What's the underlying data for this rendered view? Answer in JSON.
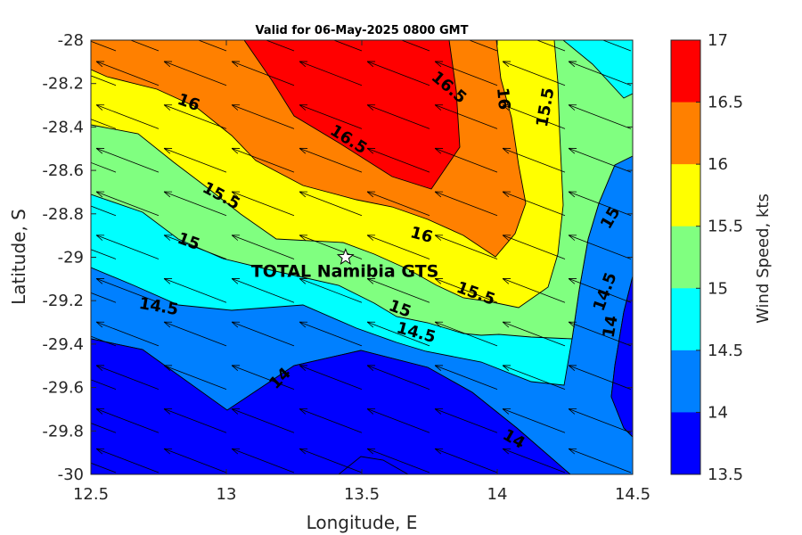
{
  "chart_data": {
    "type": "contour",
    "title": "Valid for 06-May-2025 0800 GMT",
    "xlabel": "Longitude, E",
    "ylabel": "Latitude, S",
    "xlim": [
      12.5,
      14.5
    ],
    "ylim": [
      -30,
      -28
    ],
    "xticks": [
      12.5,
      13,
      13.5,
      14,
      14.5
    ],
    "xtick_labels": [
      "12.5",
      "13",
      "13.5",
      "14",
      "14.5"
    ],
    "yticks": [
      -28,
      -28.2,
      -28.4,
      -28.6,
      -28.8,
      -29,
      -29.2,
      -29.4,
      -29.6,
      -29.8,
      -30
    ],
    "ytick_labels": [
      "-28",
      "-28.2",
      "-28.4",
      "-28.6",
      "-28.8",
      "-29",
      "-29.2",
      "-29.4",
      "-29.6",
      "-29.8",
      "-30"
    ],
    "colorbar": {
      "label": "Wind Speed, kts",
      "ticks": [
        "17",
        "16.5",
        "16",
        "15.5",
        "15",
        "14.5",
        "14",
        "13.5"
      ],
      "levels": [
        {
          "range": [
            16.5,
            17
          ],
          "color": "#ff0000"
        },
        {
          "range": [
            16,
            16.5
          ],
          "color": "#ff8000"
        },
        {
          "range": [
            15.5,
            16
          ],
          "color": "#ffff00"
        },
        {
          "range": [
            15,
            15.5
          ],
          "color": "#80ff80"
        },
        {
          "range": [
            14.5,
            15
          ],
          "color": "#00ffff"
        },
        {
          "range": [
            14,
            14.5
          ],
          "color": "#0080ff"
        },
        {
          "range": [
            13.5,
            14
          ],
          "color": "#0000ff"
        }
      ]
    },
    "contour_labels": [
      {
        "text": "16",
        "lon": 12.86,
        "lat": -28.29,
        "angle": 20
      },
      {
        "text": "16.5",
        "lon": 13.82,
        "lat": -28.22,
        "angle": 40
      },
      {
        "text": "16.5",
        "lon": 13.45,
        "lat": -28.46,
        "angle": 32
      },
      {
        "text": "16",
        "lon": 14.02,
        "lat": -28.27,
        "angle": 85
      },
      {
        "text": "15.5",
        "lon": 14.18,
        "lat": -28.31,
        "angle": -80
      },
      {
        "text": "15.5",
        "lon": 12.98,
        "lat": -28.72,
        "angle": 28
      },
      {
        "text": "15",
        "lon": 14.42,
        "lat": -28.82,
        "angle": -60
      },
      {
        "text": "15",
        "lon": 12.86,
        "lat": -28.93,
        "angle": 20
      },
      {
        "text": "16",
        "lon": 13.72,
        "lat": -28.9,
        "angle": 15
      },
      {
        "text": "15.5",
        "lon": 13.92,
        "lat": -29.17,
        "angle": 20
      },
      {
        "text": "15",
        "lon": 13.64,
        "lat": -29.24,
        "angle": 20
      },
      {
        "text": "14.5",
        "lon": 14.4,
        "lat": -29.16,
        "angle": -70
      },
      {
        "text": "14.5",
        "lon": 12.75,
        "lat": -29.23,
        "angle": 10
      },
      {
        "text": "14.5",
        "lon": 13.7,
        "lat": -29.35,
        "angle": 15
      },
      {
        "text": "14",
        "lon": 14.42,
        "lat": -29.32,
        "angle": -80
      },
      {
        "text": "14",
        "lon": 13.2,
        "lat": -29.56,
        "angle": -45
      },
      {
        "text": "14",
        "lon": 14.06,
        "lat": -29.84,
        "angle": 30
      }
    ],
    "wind_vectors": {
      "direction": "pointing toward west-northwest",
      "grid_lon": [
        12.5,
        12.75,
        13.0,
        13.25,
        13.5,
        13.75,
        14.0,
        14.25,
        14.5
      ],
      "grid_lat": [
        -28.0,
        -28.2,
        -28.4,
        -28.6,
        -28.8,
        -29.0,
        -29.2,
        -29.4,
        -29.6,
        -29.8,
        -30.0
      ],
      "dx": -0.23,
      "dy": 0.11
    },
    "site": {
      "name": "TOTAL Namibia GTS",
      "lon": 13.44,
      "lat": -29.0,
      "marker": "star"
    }
  }
}
